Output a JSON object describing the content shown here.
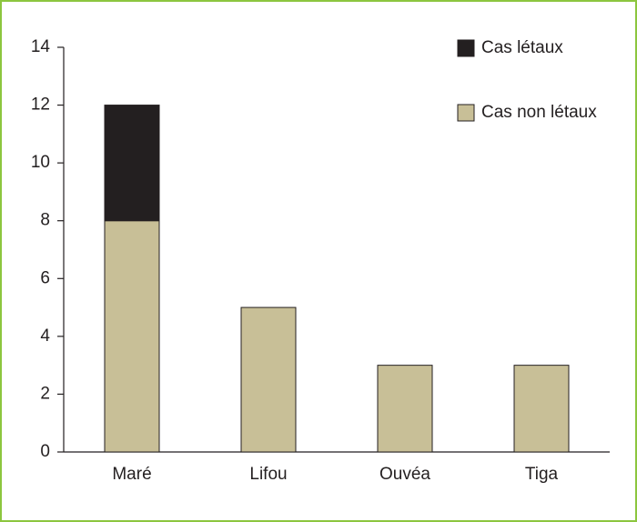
{
  "chart_data": {
    "type": "stacked_bar",
    "categories": [
      "Maré",
      "Lifou",
      "Ouvéa",
      "Tiga"
    ],
    "series": [
      {
        "name": "Cas non létaux",
        "color": "#c8bf97",
        "values": [
          8,
          5,
          3,
          3
        ]
      },
      {
        "name": "Cas létaux",
        "color": "#231f20",
        "values": [
          4,
          0,
          0,
          0
        ]
      }
    ],
    "ylim": [
      0,
      14
    ],
    "yticks": [
      0,
      2,
      4,
      6,
      8,
      10,
      12,
      14
    ],
    "grid": false,
    "legend": "top-right"
  }
}
